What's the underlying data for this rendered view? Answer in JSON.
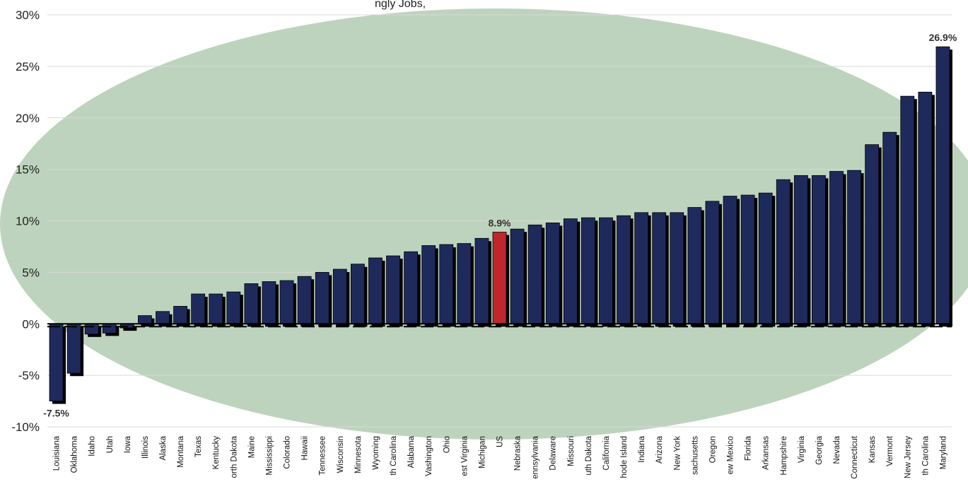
{
  "chart_data": {
    "type": "bar",
    "title": "",
    "title_visible_fragment": "ngly Jobs, ",
    "xlabel": "",
    "ylabel": "",
    "ylim": [
      -10,
      30
    ],
    "yticks": [
      -10,
      -5,
      0,
      5,
      10,
      15,
      20,
      25,
      30
    ],
    "ytick_labels": [
      "-10%",
      "-5%",
      "0%",
      "5%",
      "10%",
      "15%",
      "20%",
      "25%",
      "30%"
    ],
    "categories": [
      "Louisiana",
      "Oklahoma",
      "Idaho",
      "Utah",
      "Iowa",
      "Illinois",
      "Alaska",
      "Montana",
      "Texas",
      "Kentucky",
      "orth Dakota",
      "Maine",
      "Mississippi",
      "Colorado",
      "Hawaii",
      "Tennessee",
      "Wisconsin",
      "Minnesota",
      "Wyoming",
      "th Carolina",
      "Alabama",
      "Vashington",
      "Ohio",
      "est Virginia",
      "Michigan",
      "US",
      "Nebraska",
      "ennsylvania",
      "Delaware",
      "Missouri",
      "uth Dakota",
      "California",
      "hode Island",
      "Indiana",
      "Arizona",
      "New York",
      "sachusetts",
      "Oregon",
      "ew Mexico",
      "Florida",
      "Arkansas",
      "Hampshire",
      "Virginia",
      "Georgia",
      "Nevada",
      "Connecticut",
      "Kansas",
      "Vermont",
      "New Jersey",
      "th Carolina",
      "Maryland"
    ],
    "values": [
      -7.5,
      -4.8,
      -1.0,
      -0.9,
      -0.4,
      0.8,
      1.2,
      1.7,
      2.9,
      2.9,
      3.1,
      3.9,
      4.1,
      4.2,
      4.6,
      5.0,
      5.3,
      5.8,
      6.4,
      6.6,
      7.0,
      7.6,
      7.7,
      7.8,
      8.3,
      8.9,
      9.2,
      9.6,
      9.8,
      10.2,
      10.3,
      10.3,
      10.5,
      10.8,
      10.8,
      10.8,
      11.3,
      11.9,
      12.4,
      12.5,
      12.7,
      14.0,
      14.4,
      14.4,
      14.8,
      14.9,
      17.4,
      18.6,
      22.1,
      22.5,
      26.9
    ],
    "highlight_category": "US",
    "data_labels": [
      {
        "category": "Louisiana",
        "text": "-7.5%"
      },
      {
        "category": "US",
        "text": "8.9%"
      },
      {
        "category": "Maryland",
        "text": "26.9%"
      }
    ],
    "colors": {
      "bar": "#1f2a5c",
      "highlight": "#c0272d",
      "shadow": "#000000",
      "ellipse": "#bdd3bd",
      "grid": "#d9d9d9",
      "zero_line": "#000000"
    },
    "grid": true,
    "legend": "none"
  }
}
